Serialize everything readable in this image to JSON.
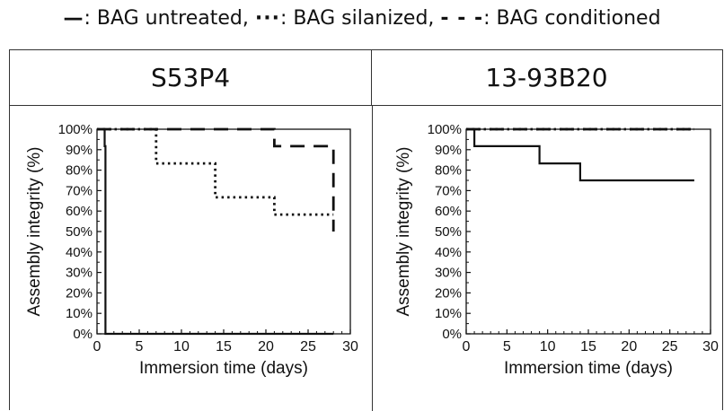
{
  "legend": {
    "untreated_key": "—",
    "untreated_label": ": BAG untreated, ",
    "silanized_key": "···",
    "silanized_label": ": BAG silanized, ",
    "conditioned_key": "- - -",
    "conditioned_label": ": BAG conditioned"
  },
  "chart_data": [
    {
      "type": "line",
      "title": "S53P4",
      "xlabel": "Immersion time (days)",
      "ylabel": "Assembly integrity (%)",
      "xlim": [
        0,
        30
      ],
      "ylim": [
        0,
        100
      ],
      "xticks": [
        0,
        5,
        10,
        15,
        20,
        25,
        30
      ],
      "yticks": [
        "0%",
        "10%",
        "20%",
        "30%",
        "40%",
        "50%",
        "60%",
        "70%",
        "80%",
        "90%",
        "100%"
      ],
      "step": true,
      "series": [
        {
          "name": "BAG untreated",
          "style": "solid",
          "x": [
            0,
            0.9,
            0.9,
            1,
            1,
            28
          ],
          "y": [
            100,
            100,
            91.7,
            91.7,
            0,
            0
          ]
        },
        {
          "name": "BAG silanized",
          "style": "dotted",
          "x": [
            0,
            7,
            7,
            14,
            14,
            21,
            21,
            28
          ],
          "y": [
            100,
            100,
            83.3,
            83.3,
            66.7,
            66.7,
            58.3,
            58.3
          ]
        },
        {
          "name": "BAG conditioned",
          "style": "dashed",
          "x": [
            0,
            21,
            21,
            28,
            28
          ],
          "y": [
            100,
            100,
            91.7,
            91.7,
            50
          ]
        }
      ]
    },
    {
      "type": "line",
      "title": "13-93B20",
      "xlabel": "Immersion time (days)",
      "ylabel": "Assembly integrity (%)",
      "xlim": [
        0,
        30
      ],
      "ylim": [
        0,
        100
      ],
      "xticks": [
        0,
        5,
        10,
        15,
        20,
        25,
        30
      ],
      "yticks": [
        "0%",
        "10%",
        "20%",
        "30%",
        "40%",
        "50%",
        "60%",
        "70%",
        "80%",
        "90%",
        "100%"
      ],
      "step": true,
      "series": [
        {
          "name": "BAG untreated",
          "style": "solid",
          "x": [
            0,
            1,
            1,
            9,
            9,
            14,
            14,
            28
          ],
          "y": [
            100,
            100,
            91.7,
            91.7,
            83.3,
            83.3,
            75,
            75
          ]
        },
        {
          "name": "BAG silanized",
          "style": "dotted",
          "x": [
            0,
            28
          ],
          "y": [
            100,
            100
          ]
        },
        {
          "name": "BAG conditioned",
          "style": "dashed",
          "x": [
            0,
            28
          ],
          "y": [
            100,
            100
          ]
        }
      ]
    }
  ]
}
